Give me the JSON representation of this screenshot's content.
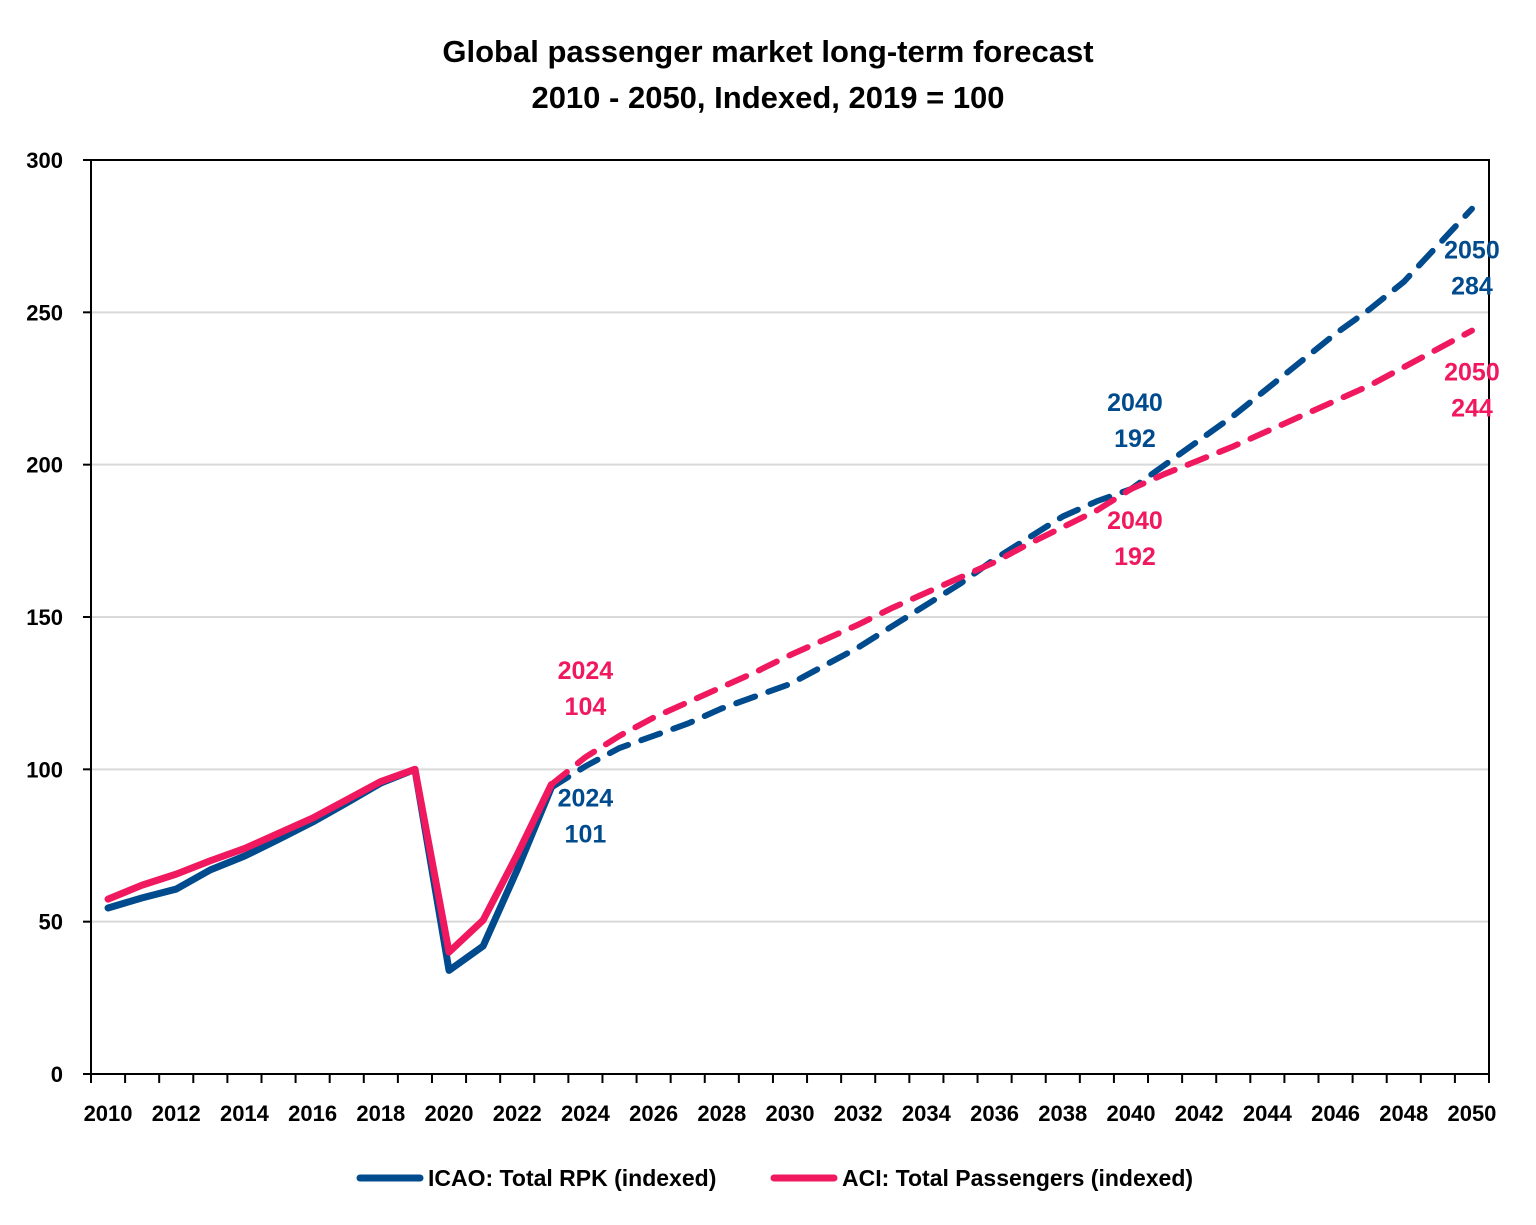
{
  "chart_data": {
    "type": "line",
    "title": "Global passenger market long-term forecast",
    "subtitle": "2010 - 2050, Indexed, 2019 = 100",
    "xlabel": "",
    "ylabel": "",
    "xlim": [
      2010,
      2050
    ],
    "ylim": [
      0,
      300
    ],
    "y_ticks": [
      0,
      50,
      100,
      150,
      200,
      250,
      300
    ],
    "x_tick_labels": [
      "2010",
      "2012",
      "2014",
      "2016",
      "2018",
      "2020",
      "2022",
      "2024",
      "2026",
      "2028",
      "2030",
      "2032",
      "2034",
      "2036",
      "2038",
      "2040",
      "2042",
      "2044",
      "2046",
      "2048",
      "2050"
    ],
    "grid": "horizontal",
    "legend_placement": "bottom",
    "series": [
      {
        "name": "ICAO: Total RPK (indexed)",
        "color": "#004b8d",
        "historical": {
          "x": [
            2010,
            2011,
            2012,
            2013,
            2014,
            2015,
            2016,
            2017,
            2018,
            2019,
            2020,
            2021,
            2022,
            2023
          ],
          "y": [
            54.5,
            57.8,
            60.7,
            67,
            71.5,
            77,
            82.7,
            89,
            95.5,
            100,
            34,
            42,
            67,
            94
          ]
        },
        "forecast": {
          "x": [
            2023,
            2024,
            2025,
            2026,
            2027,
            2028,
            2029,
            2030,
            2031,
            2032,
            2033,
            2034,
            2035,
            2036,
            2037,
            2038,
            2039,
            2040,
            2041,
            2042,
            2043,
            2044,
            2045,
            2046,
            2047,
            2048,
            2049,
            2050
          ],
          "y": [
            94,
            101,
            107,
            111,
            115,
            120,
            124,
            128,
            134,
            140,
            147,
            154,
            161,
            169,
            176,
            183,
            188,
            192,
            200,
            208,
            216,
            225,
            234,
            243,
            251,
            260,
            272,
            284
          ]
        }
      },
      {
        "name": "ACI: Total Passengers (indexed)",
        "color": "#f0185e",
        "historical": {
          "x": [
            2010,
            2011,
            2012,
            2013,
            2014,
            2015,
            2016,
            2017,
            2018,
            2019,
            2020,
            2021,
            2022,
            2023
          ],
          "y": [
            57.4,
            62,
            65.6,
            70,
            74,
            79,
            84,
            90,
            96,
            100,
            40,
            50.5,
            72,
            95
          ]
        },
        "forecast": {
          "x": [
            2023,
            2024,
            2025,
            2026,
            2027,
            2028,
            2029,
            2030,
            2031,
            2032,
            2033,
            2034,
            2035,
            2036,
            2037,
            2038,
            2039,
            2040,
            2041,
            2042,
            2043,
            2044,
            2045,
            2046,
            2047,
            2048,
            2049,
            2050
          ],
          "y": [
            95,
            104,
            111,
            117,
            122,
            127,
            132,
            137.5,
            142.5,
            147.5,
            153,
            158,
            163,
            168,
            174,
            179.5,
            185,
            192,
            197,
            201.5,
            206,
            211,
            216,
            221,
            226,
            232,
            238,
            244
          ]
        }
      }
    ],
    "annotations": [
      {
        "series": 1,
        "year": "2024",
        "value": "104",
        "position": "above"
      },
      {
        "series": 0,
        "year": "2024",
        "value": "101",
        "position": "below"
      },
      {
        "series": 0,
        "year": "2040",
        "value": "192",
        "position": "above"
      },
      {
        "series": 1,
        "year": "2040",
        "value": "192",
        "position": "below"
      },
      {
        "series": 0,
        "year": "2050",
        "value": "284",
        "position": "below"
      },
      {
        "series": 1,
        "year": "2050",
        "value": "244",
        "position": "below"
      }
    ]
  }
}
